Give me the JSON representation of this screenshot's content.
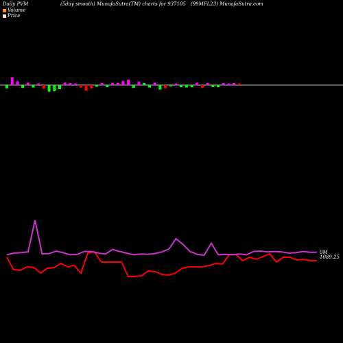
{
  "header": {
    "left": "Daily PVM",
    "middle": "(5day smooth) MunafaSutra(TM) charts for 937105",
    "right": "(99MFL23) MunafaSutra.com"
  },
  "legend": [
    {
      "label": "Volume",
      "color": "#ff8c00"
    },
    {
      "label": "Price",
      "color": "#ffe4c4"
    }
  ],
  "colors": {
    "up": "#ff00ff",
    "down": "#ff0000",
    "green": "#00ff00",
    "baseline": "#ffffff",
    "price_line": "#ff0000",
    "ma_line": "#cc33cc"
  },
  "chart_data": {
    "type": "line",
    "volume_bars": {
      "values": [
        -0.8,
        1.9,
        0.9,
        -0.7,
        0.6,
        -0.6,
        0.4,
        -0.9,
        -1.6,
        -1.5,
        -1.0,
        0.6,
        0.5,
        0.4,
        -0.6,
        -1.4,
        -0.8,
        -0.4,
        0.5,
        -0.5,
        0.5,
        0.5,
        1.0,
        1.3,
        -0.7,
        0.8,
        0.5,
        -0.6,
        0.6,
        -1.1,
        -0.8,
        -0.3,
        0.4,
        -0.5,
        -0.6,
        -0.5,
        0.6,
        -0.7,
        0.5,
        -0.5,
        -0.5,
        0.5,
        0.4,
        0.5,
        0.4
      ],
      "colors": [
        "green",
        "up",
        "up",
        "green",
        "up",
        "green",
        "up",
        "down",
        "green",
        "green",
        "green",
        "up",
        "up",
        "up",
        "down",
        "down",
        "down",
        "green",
        "up",
        "green",
        "up",
        "up",
        "up",
        "up",
        "green",
        "up",
        "green",
        "green",
        "up",
        "green",
        "down",
        "green",
        "up",
        "green",
        "green",
        "green",
        "up",
        "down",
        "up",
        "green",
        "green",
        "up",
        "up",
        "up",
        "down"
      ]
    },
    "price_series": [
      0.0,
      -1.8,
      -1.9,
      -1.4,
      -1.5,
      -2.3,
      -1.6,
      -1.5,
      -0.9,
      -1.4,
      -1.2,
      -2.3,
      0.6,
      0.8,
      -0.7,
      -0.7,
      -0.7,
      -0.7,
      -2.8,
      -2.8,
      -2.7,
      -2.0,
      -2.1,
      -2.5,
      -2.6,
      -2.3,
      -1.6,
      -1.4,
      -1.4,
      -1.4,
      -1.2,
      -0.9,
      -1.0,
      0.4,
      0.4,
      -0.5,
      0.0,
      -0.3,
      0.1,
      0.5,
      -0.7,
      0.0,
      0.0,
      -0.4,
      -0.3,
      -0.5,
      -0.5
    ],
    "ma_series": [
      0.1,
      0.5,
      0.6,
      0.8,
      8.5,
      0.3,
      0.4,
      1.0,
      0.6,
      0.1,
      0.2,
      0.9,
      0.9,
      0.5,
      0.3,
      1.4,
      0.9,
      0.5,
      0.1,
      0.3,
      0.2,
      0.4,
      0.8,
      1.5,
      4.0,
      2.6,
      0.9,
      0.2,
      0.0,
      2.9,
      0.1,
      0.2,
      0.1,
      0.3,
      0.1,
      0.9,
      1.0,
      0.8,
      0.9,
      0.8,
      0.5,
      0.6,
      0.9,
      0.7,
      0.7
    ],
    "right_labels": [
      "0M",
      "1089.25"
    ]
  }
}
